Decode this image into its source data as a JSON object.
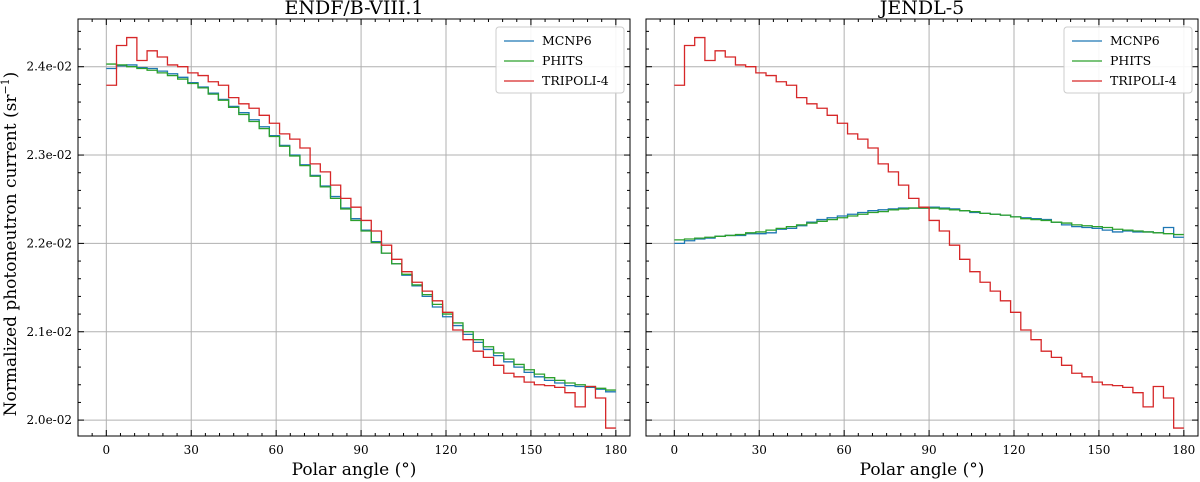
{
  "ylabel": "Normalized photoneutron current (sr",
  "ylabel_sup": "−1",
  "ylabel_close": ")",
  "chart_data": [
    {
      "type": "line",
      "title": "ENDF/B-VIII.1",
      "xlabel": "Polar angle (°)",
      "xlim": [
        -10,
        185
      ],
      "ylim": [
        0.01982,
        0.02454
      ],
      "xticks": [
        0,
        30,
        60,
        90,
        120,
        150,
        180
      ],
      "yticks": [
        0.02,
        0.021,
        0.022,
        0.023,
        0.024
      ],
      "ytick_labels": [
        "2.0e-02",
        "2.1e-02",
        "2.2e-02",
        "2.3e-02",
        "2.4e-02"
      ],
      "grid": true,
      "legend_position": "top-right",
      "bin_edges": [
        0,
        3.6,
        7.2,
        10.8,
        14.4,
        18,
        21.6,
        25.2,
        28.8,
        32.4,
        36,
        39.6,
        43.2,
        46.8,
        50.4,
        54,
        57.6,
        61.2,
        64.8,
        68.4,
        72,
        75.6,
        79.2,
        82.8,
        86.4,
        90,
        93.6,
        97.2,
        100.8,
        104.4,
        108,
        111.6,
        115.2,
        118.8,
        122.4,
        126,
        129.6,
        133.2,
        136.8,
        140.4,
        144,
        147.6,
        151.2,
        154.8,
        158.4,
        162,
        165.6,
        169.2,
        172.8,
        176.4,
        180
      ],
      "series": [
        {
          "name": "MCNP6",
          "color": "#1f77b4",
          "values": [
            0.02398,
            0.02401,
            0.02402,
            0.02399,
            0.02398,
            0.02395,
            0.02392,
            0.02388,
            0.02382,
            0.02377,
            0.0237,
            0.02363,
            0.02355,
            0.02348,
            0.0234,
            0.02332,
            0.02322,
            0.02311,
            0.023,
            0.02289,
            0.02277,
            0.02265,
            0.02253,
            0.0224,
            0.02228,
            0.02215,
            0.02202,
            0.02189,
            0.02177,
            0.02164,
            0.02152,
            0.0214,
            0.02128,
            0.02117,
            0.02107,
            0.02097,
            0.02088,
            0.0208,
            0.02073,
            0.02066,
            0.0206,
            0.02054,
            0.02049,
            0.02045,
            0.02042,
            0.02039,
            0.02038,
            0.02037,
            0.02035,
            0.02032
          ]
        },
        {
          "name": "PHITS",
          "color": "#2ca02c",
          "values": [
            0.02403,
            0.02402,
            0.024,
            0.02398,
            0.02396,
            0.02393,
            0.0239,
            0.02386,
            0.02381,
            0.02376,
            0.02369,
            0.02362,
            0.02354,
            0.02346,
            0.02338,
            0.0233,
            0.02321,
            0.0231,
            0.02299,
            0.02288,
            0.02276,
            0.02264,
            0.02251,
            0.02239,
            0.02226,
            0.02214,
            0.02201,
            0.02189,
            0.02177,
            0.02165,
            0.02153,
            0.02142,
            0.02131,
            0.0212,
            0.0211,
            0.021,
            0.02091,
            0.02083,
            0.02076,
            0.02069,
            0.02063,
            0.02057,
            0.02052,
            0.02048,
            0.02045,
            0.02042,
            0.0204,
            0.02038,
            0.02036,
            0.02034
          ]
        },
        {
          "name": "TRIPOLI-4",
          "color": "#d62728",
          "values": [
            0.02379,
            0.02424,
            0.02433,
            0.02407,
            0.02418,
            0.02411,
            0.02402,
            0.024,
            0.02393,
            0.0239,
            0.02383,
            0.02379,
            0.02365,
            0.02358,
            0.02353,
            0.02345,
            0.02336,
            0.02324,
            0.02318,
            0.02308,
            0.0229,
            0.02281,
            0.02266,
            0.02251,
            0.02241,
            0.02226,
            0.02214,
            0.02198,
            0.02182,
            0.02168,
            0.02156,
            0.02146,
            0.02135,
            0.02122,
            0.02102,
            0.02091,
            0.02078,
            0.02071,
            0.02062,
            0.02053,
            0.02049,
            0.02043,
            0.0204,
            0.02039,
            0.02037,
            0.02031,
            0.02015,
            0.02038,
            0.02025,
            0.01991
          ]
        }
      ]
    },
    {
      "type": "line",
      "title": "JENDL-5",
      "xlabel": "Polar angle (°)",
      "xlim": [
        -10,
        185
      ],
      "ylim": [
        0.01982,
        0.02454
      ],
      "xticks": [
        0,
        30,
        60,
        90,
        120,
        150,
        180
      ],
      "yticks": [
        0.02,
        0.021,
        0.022,
        0.023,
        0.024
      ],
      "grid": true,
      "legend_position": "top-right",
      "bin_edges": [
        0,
        3.6,
        7.2,
        10.8,
        14.4,
        18,
        21.6,
        25.2,
        28.8,
        32.4,
        36,
        39.6,
        43.2,
        46.8,
        50.4,
        54,
        57.6,
        61.2,
        64.8,
        68.4,
        72,
        75.6,
        79.2,
        82.8,
        86.4,
        90,
        93.6,
        97.2,
        100.8,
        104.4,
        108,
        111.6,
        115.2,
        118.8,
        122.4,
        126,
        129.6,
        133.2,
        136.8,
        140.4,
        144,
        147.6,
        151.2,
        154.8,
        158.4,
        162,
        165.6,
        169.2,
        172.8,
        176.4,
        180
      ],
      "series": [
        {
          "name": "MCNP6",
          "color": "#1f77b4",
          "values": [
            0.022,
            0.02203,
            0.02205,
            0.02206,
            0.02208,
            0.02209,
            0.02209,
            0.02211,
            0.02211,
            0.02212,
            0.02216,
            0.02217,
            0.0222,
            0.02224,
            0.02227,
            0.02229,
            0.02231,
            0.02233,
            0.02235,
            0.02237,
            0.02238,
            0.02239,
            0.0224,
            0.0224,
            0.0224,
            0.02241,
            0.0224,
            0.02239,
            0.02237,
            0.02235,
            0.02234,
            0.02233,
            0.02232,
            0.0223,
            0.02229,
            0.02228,
            0.02227,
            0.02224,
            0.02221,
            0.02219,
            0.02218,
            0.02217,
            0.02215,
            0.02213,
            0.02214,
            0.02213,
            0.02213,
            0.02212,
            0.02218,
            0.02207
          ]
        },
        {
          "name": "PHITS",
          "color": "#2ca02c",
          "values": [
            0.02204,
            0.02205,
            0.02206,
            0.02207,
            0.02208,
            0.02209,
            0.0221,
            0.02212,
            0.02213,
            0.02215,
            0.02217,
            0.02219,
            0.02221,
            0.02223,
            0.02225,
            0.02227,
            0.02229,
            0.02231,
            0.02233,
            0.02235,
            0.02236,
            0.02238,
            0.02239,
            0.0224,
            0.0224,
            0.0224,
            0.02239,
            0.02238,
            0.02237,
            0.02236,
            0.02234,
            0.02233,
            0.02232,
            0.0223,
            0.02228,
            0.02227,
            0.02226,
            0.02224,
            0.02223,
            0.02221,
            0.0222,
            0.02219,
            0.02218,
            0.02216,
            0.02215,
            0.02214,
            0.02213,
            0.02212,
            0.02211,
            0.0221
          ]
        },
        {
          "name": "TRIPOLI-4",
          "color": "#d62728",
          "values": [
            0.02379,
            0.02424,
            0.02433,
            0.02407,
            0.02418,
            0.02411,
            0.02402,
            0.024,
            0.02393,
            0.0239,
            0.02383,
            0.02379,
            0.02365,
            0.02358,
            0.02353,
            0.02345,
            0.02336,
            0.02324,
            0.02318,
            0.02308,
            0.0229,
            0.02281,
            0.02266,
            0.02251,
            0.02241,
            0.02226,
            0.02214,
            0.02198,
            0.02182,
            0.02168,
            0.02156,
            0.02146,
            0.02135,
            0.02122,
            0.02102,
            0.02091,
            0.02078,
            0.02071,
            0.02062,
            0.02053,
            0.02049,
            0.02043,
            0.0204,
            0.02039,
            0.02037,
            0.02031,
            0.02015,
            0.02038,
            0.02025,
            0.01991
          ]
        }
      ]
    }
  ]
}
